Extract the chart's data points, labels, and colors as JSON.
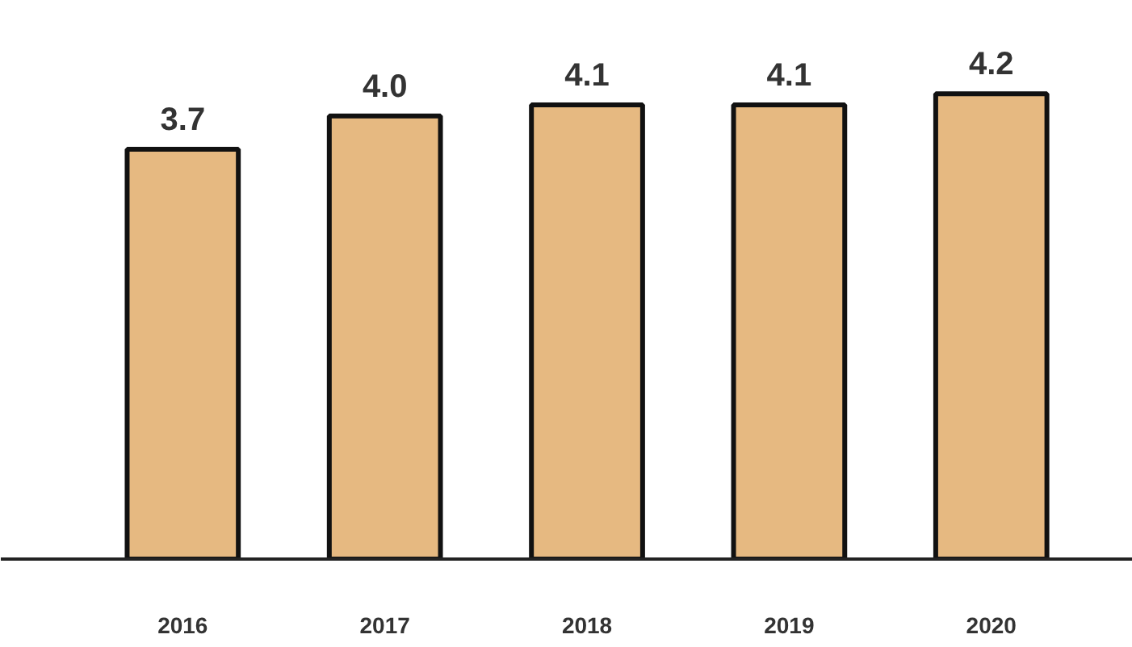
{
  "chart_data": {
    "type": "bar",
    "categories": [
      "2016",
      "2017",
      "2018",
      "2019",
      "2020"
    ],
    "values": [
      3.7,
      4.0,
      4.1,
      4.1,
      4.2
    ],
    "value_labels": [
      "3.7",
      "4.0",
      "4.1",
      "4.1",
      "4.2"
    ],
    "color": "#e6b981",
    "tick_labels": "x",
    "grid": false
  }
}
